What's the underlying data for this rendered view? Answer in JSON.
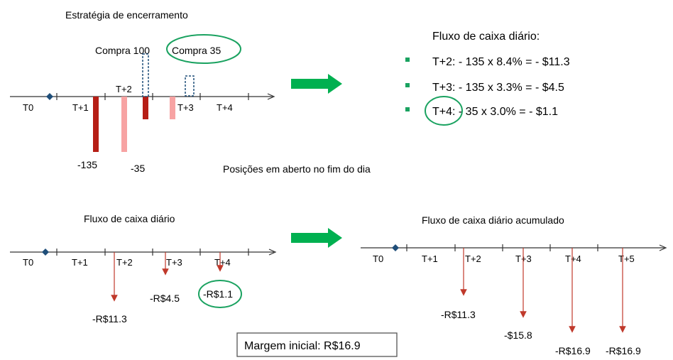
{
  "colors": {
    "bar_dark": "#b61e16",
    "bar_light": "#f7a3a3",
    "arrow_green": "#00b050",
    "oval_green": "#1aa260",
    "arrow_red": "#c0392b",
    "dashed_blue": "#1f4e79",
    "diamond": "#1f4e79"
  },
  "top_left": {
    "title": "Estratégia de encerramento",
    "compra1": "Compra 100",
    "compra2": "Compra   35",
    "periods": [
      "T0",
      "T+1",
      "T+2",
      "T+3",
      "T+4"
    ],
    "bar_labels": [
      "-135",
      "-35"
    ],
    "caption": "Posições em aberto no fim do dia"
  },
  "top_right": {
    "title": "Fluxo de caixa diário:",
    "bullets": [
      "T+2: - 135 x 8.4% = - $11.3",
      "T+3: - 135 x 3.3% = - $4.5",
      "T+4: - 35 x 3.0% = - $1.1"
    ]
  },
  "bottom_left": {
    "title": "Fluxo de caixa diário",
    "periods": [
      "T0",
      "T+1",
      "T+2",
      "T+3",
      "T+4"
    ],
    "values": [
      "-R$11.3",
      "-R$4.5",
      "-R$1.1"
    ]
  },
  "bottom_right": {
    "title": "Fluxo de caixa diário acumulado",
    "periods": [
      "T0",
      "T+1",
      "T+2",
      "T+3",
      "T+4",
      "T+5"
    ],
    "values": [
      "-R$11.3",
      "-$15.8",
      "-R$16.9",
      "-R$16.9"
    ]
  },
  "margin_box": "Margem inicial: R$16.9"
}
